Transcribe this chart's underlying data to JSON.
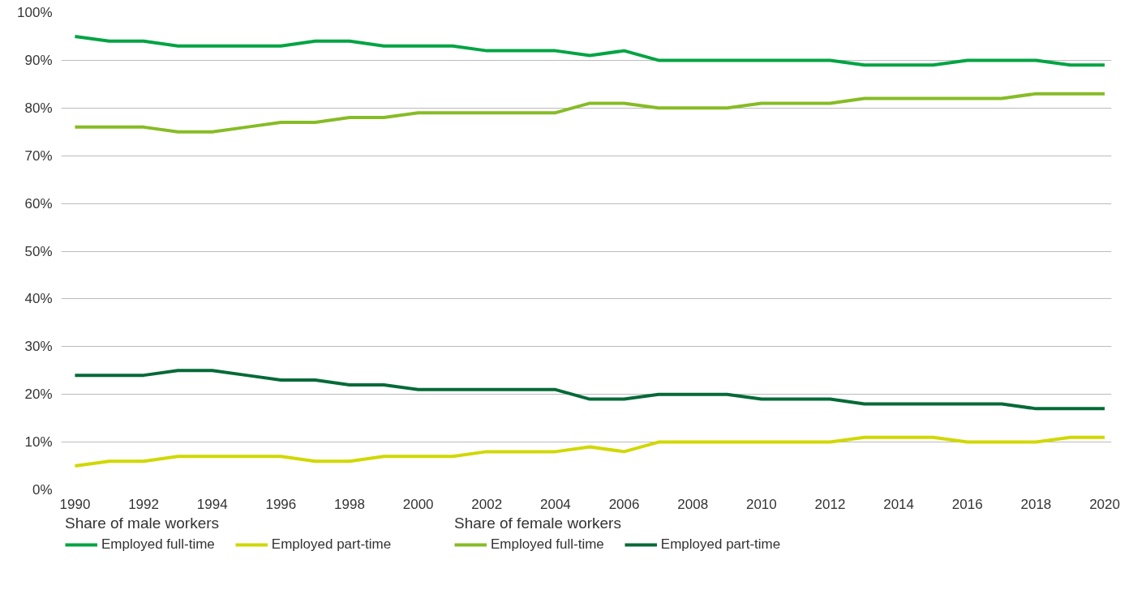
{
  "chart_data": {
    "type": "line",
    "x": [
      1990,
      1991,
      1992,
      1993,
      1994,
      1995,
      1996,
      1997,
      1998,
      1999,
      2000,
      2001,
      2002,
      2003,
      2004,
      2005,
      2006,
      2007,
      2008,
      2009,
      2010,
      2011,
      2012,
      2013,
      2014,
      2015,
      2016,
      2017,
      2018,
      2019,
      2020
    ],
    "series": [
      {
        "name": "Employed full-time",
        "color": "#00a443",
        "values": [
          95,
          94,
          94,
          93,
          93,
          93,
          93,
          94,
          94,
          93,
          93,
          93,
          92,
          92,
          92,
          91,
          92,
          90,
          90,
          90,
          90,
          90,
          90,
          89,
          89,
          89,
          90,
          90,
          90,
          89,
          89
        ]
      },
      {
        "name": "Employed part-time",
        "color": "#d0d800",
        "values": [
          5,
          6,
          6,
          7,
          7,
          7,
          7,
          6,
          6,
          7,
          7,
          7,
          8,
          8,
          8,
          9,
          8,
          10,
          10,
          10,
          10,
          10,
          10,
          11,
          11,
          11,
          10,
          10,
          10,
          11,
          11
        ]
      },
      {
        "name": "Employed full-time",
        "color": "#86bc25",
        "values": [
          76,
          76,
          76,
          75,
          75,
          76,
          77,
          77,
          78,
          78,
          79,
          79,
          79,
          79,
          79,
          81,
          81,
          80,
          80,
          80,
          81,
          81,
          81,
          82,
          82,
          82,
          82,
          82,
          83,
          83,
          83
        ]
      },
      {
        "name": "Employed part-time",
        "color": "#046a38",
        "values": [
          24,
          24,
          24,
          25,
          25,
          24,
          23,
          23,
          22,
          22,
          21,
          21,
          21,
          21,
          21,
          19,
          19,
          20,
          20,
          20,
          19,
          19,
          19,
          18,
          18,
          18,
          18,
          18,
          17,
          17,
          17
        ]
      }
    ],
    "annotations": [
      "Share of male workers",
      "Share of female workers"
    ],
    "xlim": [
      1989.6,
      2020.2
    ],
    "xticks": [
      1990,
      1992,
      1994,
      1996,
      1998,
      2000,
      2002,
      2004,
      2006,
      2008,
      2010,
      2012,
      2014,
      2016,
      2018,
      2020
    ],
    "ylim": [
      0,
      100
    ],
    "yticks": [
      {
        "value": 0,
        "label": "0%"
      },
      {
        "value": 10,
        "label": "10%"
      },
      {
        "value": 20,
        "label": "20%"
      },
      {
        "value": 30,
        "label": "30%"
      },
      {
        "value": 40,
        "label": "40%"
      },
      {
        "value": 50,
        "label": "50%"
      },
      {
        "value": 60,
        "label": "60%"
      },
      {
        "value": 70,
        "label": "70%"
      },
      {
        "value": 80,
        "label": "80%"
      },
      {
        "value": 90,
        "label": "90%"
      },
      {
        "value": 100,
        "label": "100%"
      }
    ],
    "grid": "y",
    "legend": "bottom",
    "marker": "none",
    "line_style": "solid"
  }
}
